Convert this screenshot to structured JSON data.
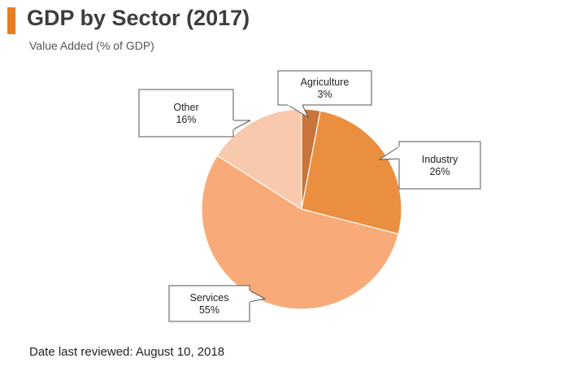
{
  "header": {
    "title": "GDP by Sector (2017)",
    "subtitle": "Value Added (% of GDP)",
    "accent_color": "#e87e22"
  },
  "footer": {
    "date_text": "Date last reviewed: August 10, 2018"
  },
  "chart_data": {
    "type": "pie",
    "title": "GDP by Sector (2017)",
    "subtitle": "Value Added (% of GDP)",
    "slices": [
      {
        "label": "Agriculture",
        "value": 3,
        "value_label": "3%",
        "color": "#c8743a"
      },
      {
        "label": "Industry",
        "value": 26,
        "value_label": "26%",
        "color": "#ea8f40"
      },
      {
        "label": "Services",
        "value": 55,
        "value_label": "55%",
        "color": "#f8ab78"
      },
      {
        "label": "Other",
        "value": 16,
        "value_label": "16%",
        "color": "#f9c9ad"
      }
    ]
  }
}
